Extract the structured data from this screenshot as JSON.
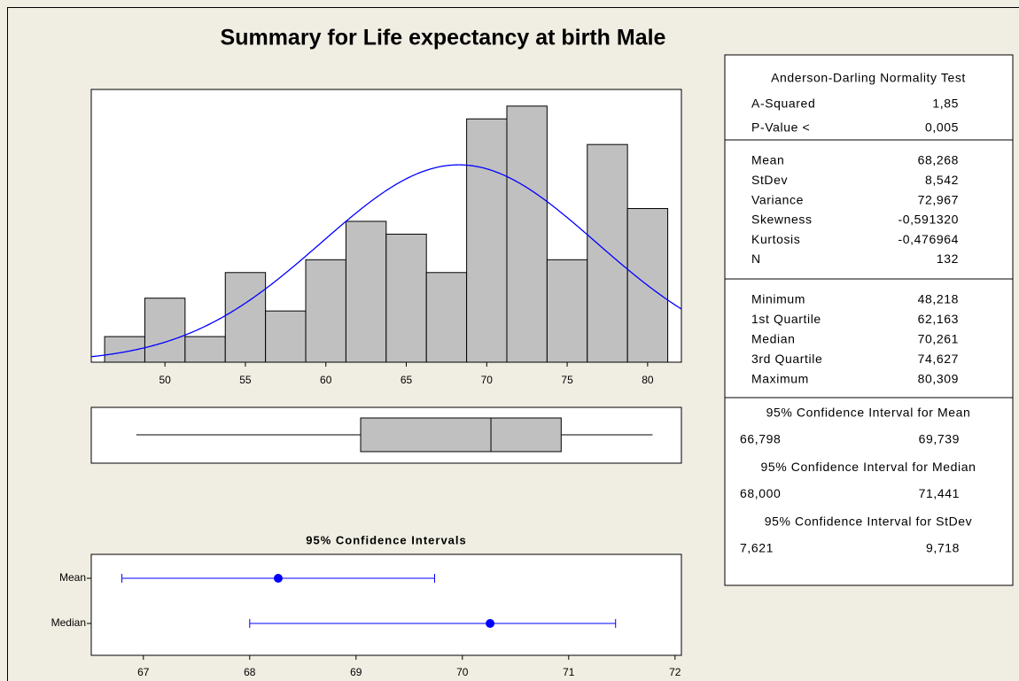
{
  "title": "Summary for Life expectancy at birth Male",
  "chart_data": [
    {
      "type": "histogram",
      "bins": [
        46.25,
        48.75,
        51.25,
        53.75,
        56.25,
        58.75,
        61.25,
        63.75,
        66.25,
        68.75,
        71.25,
        73.75,
        76.25,
        78.75,
        81.25
      ],
      "counts": [
        2,
        5,
        2,
        7,
        4,
        8,
        11,
        10,
        7,
        19,
        20,
        8,
        17,
        12
      ],
      "xlim": [
        45.42,
        82.1
      ],
      "ylim": [
        0,
        21.3
      ],
      "xticks": [
        50,
        55,
        60,
        65,
        70,
        75,
        80
      ],
      "color": "#c0c0c0",
      "curve_color": "#0000ff"
    },
    {
      "type": "box",
      "color": "#c0c0c0"
    },
    {
      "type": "interval",
      "title": "95% Confidence Intervals",
      "categories": [
        "Mean",
        "Median"
      ],
      "xlim": [
        66.51,
        72.06
      ],
      "xticks": [
        67,
        68,
        69,
        70,
        71,
        72
      ],
      "color": "#0000ff"
    }
  ],
  "table": {
    "normality_title": "Anderson-Darling Normality Test",
    "normality": [
      {
        "name": "A-Squared",
        "value": {
          "value": 1.85,
          "label": "1,85"
        }
      },
      {
        "name": "P-Value <",
        "value": {
          "value": 0.005,
          "label": "0,005"
        }
      }
    ],
    "descriptive": [
      {
        "name": "Mean",
        "value": {
          "value": 68.268,
          "label": "68,268"
        }
      },
      {
        "name": "StDev",
        "value": {
          "value": 8.542,
          "label": "8,542"
        }
      },
      {
        "name": "Variance",
        "value": {
          "value": 72.967,
          "label": "72,967"
        }
      },
      {
        "name": "Skewness",
        "value": {
          "value": -0.59132,
          "label": "-0,591320"
        }
      },
      {
        "name": "Kurtosis",
        "value": {
          "value": -0.476964,
          "label": "-0,476964"
        }
      },
      {
        "name": "N",
        "value": 132
      }
    ],
    "quartiles": [
      {
        "name": "Minimum",
        "value": {
          "value": 48.218,
          "label": "48,218"
        }
      },
      {
        "name": "1st Quartile",
        "value": {
          "value": 62.163,
          "label": "62,163"
        }
      },
      {
        "name": "Median",
        "value": {
          "value": 70.261,
          "label": "70,261"
        }
      },
      {
        "name": "3rd Quartile",
        "value": {
          "value": 74.627,
          "label": "74,627"
        }
      },
      {
        "name": "Maximum",
        "value": {
          "value": 80.309,
          "label": "80,309"
        }
      }
    ],
    "intervals": [
      {
        "title": "95% Confidence Interval for Mean",
        "lower": {
          "value": 66.798,
          "label": "66,798"
        },
        "upper": {
          "value": 69.739,
          "label": "69,739"
        }
      },
      {
        "title": "95% Confidence Interval for Median",
        "lower": {
          "value": 68.0,
          "label": "68,000"
        },
        "upper": {
          "value": 71.441,
          "label": "71,441"
        }
      },
      {
        "title": "95% Confidence Interval for StDev",
        "lower": {
          "value": 7.621,
          "label": "7,621"
        },
        "upper": {
          "value": 9.718,
          "label": "9,718"
        }
      }
    ]
  }
}
